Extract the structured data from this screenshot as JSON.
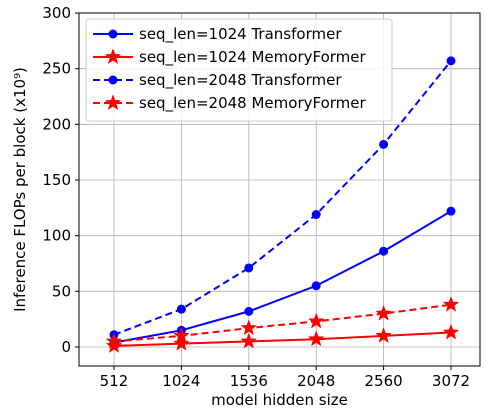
{
  "chart_data": {
    "type": "line",
    "xlabel": "model hidden size",
    "ylabel": "Inference  FLOPs per block (x10⁹)",
    "x": [
      512,
      1024,
      1536,
      2048,
      2560,
      3072
    ],
    "x_tick_labels": [
      "512",
      "1024",
      "1536",
      "2048",
      "2560",
      "3072"
    ],
    "ylim": [
      0,
      300
    ],
    "y_ticks": [
      0,
      50,
      100,
      150,
      200,
      250,
      300
    ],
    "y_tick_labels": [
      "0",
      "50",
      "100",
      "150",
      "200",
      "250",
      "300"
    ],
    "grid": true,
    "legend_position": "top-left",
    "series": [
      {
        "name": "seq_len=1024  Transformer",
        "color": "#0000ff",
        "dashed": false,
        "marker": "circle",
        "values": [
          4,
          15,
          32,
          55,
          86,
          122
        ]
      },
      {
        "name": "seq_len=1024  MemoryFormer",
        "color": "#ff0000",
        "dashed": false,
        "marker": "star",
        "values": [
          1,
          3,
          5,
          7,
          10,
          13
        ]
      },
      {
        "name": "seq_len=2048  Transformer",
        "color": "#0000ff",
        "dashed": true,
        "marker": "circle",
        "values": [
          11,
          34,
          71,
          119,
          182,
          257
        ]
      },
      {
        "name": "seq_len=2048  MemoryFormer",
        "color": "#ff0000",
        "dashed": true,
        "marker": "star",
        "values": [
          5,
          10,
          17,
          23,
          30,
          38
        ]
      }
    ]
  }
}
